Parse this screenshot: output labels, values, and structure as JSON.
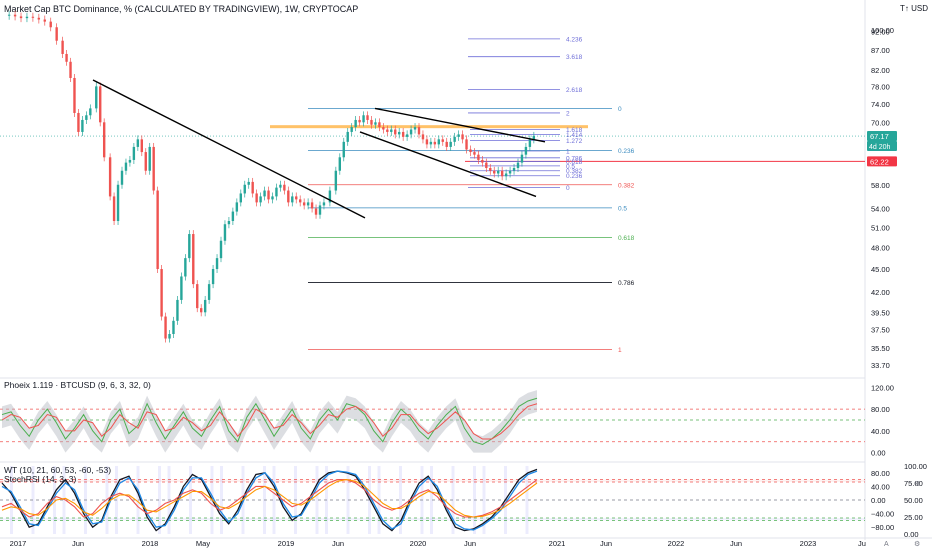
{
  "header": {
    "title": "Market Cap BTC Dominance, % (CALCULATED BY TRADINGVIEW), 1W, CRYPTOCAP",
    "currency": "T↑ USD"
  },
  "indicators": {
    "phoenix_title": "Phoeix 1.119 · BTCUSD (9, 6, 3, 32, 0)",
    "wt_title": "WT (10, 21, 60, 53, -60, -53)",
    "stoch_title": "StochRSI (14, 3, 3)"
  },
  "price_badges": {
    "current": "67.17",
    "countdown": "4d 20h",
    "level": "62.22"
  },
  "colors": {
    "up": "#26a69a",
    "down": "#ef5350",
    "fib_top": "#6f6fd8",
    "fib_236": "#3a8bbf",
    "fib_382": "#ef5350",
    "fib_618": "#4caf50",
    "fib_786": "#131722",
    "orange_zone": "#ffb74d",
    "badge_green": "#26a69a",
    "badge_red": "#f23645"
  },
  "chart_data": [
    {
      "type": "candlestick",
      "title": "Market Cap BTC Dominance, % (CALCULATED BY TRADINGVIEW), 1W, CRYPTOCAP",
      "ylim": [
        33.0,
        97.0
      ],
      "yscale": "log",
      "y_ticks": [
        92.0,
        87.0,
        82.0,
        78.0,
        74.0,
        70.0,
        66.0,
        62.0,
        58.0,
        54.0,
        51.0,
        48.0,
        45.0,
        42.0,
        39.5,
        37.5,
        35.5,
        33.7,
        100.0
      ],
      "y_tick_labels": [
        "92.00",
        "87.00",
        "82.00",
        "78.00",
        "74.00",
        "70.00",
        "66.00",
        "62.00",
        "58.00",
        "54.00",
        "51.00",
        "48.00",
        "45.00",
        "42.00",
        "39.50",
        "37.50",
        "35.50",
        "33.70",
        "100.00"
      ],
      "x_tick_labels": [
        "2017",
        "Jun",
        "2018",
        "May",
        "2019",
        "Jun",
        "2020",
        "Jun",
        "2021",
        "Jun",
        "2022",
        "Jun",
        "2023",
        "Ju"
      ],
      "close_series": [
        [
          0,
          96.5
        ],
        [
          6,
          96.8
        ],
        [
          12,
          96.3
        ],
        [
          18,
          95.8
        ],
        [
          24,
          96.2
        ],
        [
          30,
          95.9
        ],
        [
          36,
          95.4
        ],
        [
          42,
          94.8
        ],
        [
          48,
          93.2
        ],
        [
          54,
          89.5
        ],
        [
          60,
          86.0
        ],
        [
          64,
          84.0
        ],
        [
          68,
          80.0
        ],
        [
          72,
          72.0
        ],
        [
          76,
          68.0
        ],
        [
          80,
          70.5
        ],
        [
          84,
          71.5
        ],
        [
          88,
          73.0
        ],
        [
          94,
          78.0
        ],
        [
          98,
          70.0
        ],
        [
          102,
          63.0
        ],
        [
          108,
          56.0
        ],
        [
          112,
          52.0
        ],
        [
          116,
          58.0
        ],
        [
          120,
          60.5
        ],
        [
          124,
          62.0
        ],
        [
          128,
          62.5
        ],
        [
          132,
          65.0
        ],
        [
          136,
          66.5
        ],
        [
          140,
          64.0
        ],
        [
          144,
          60.5
        ],
        [
          148,
          65.0
        ],
        [
          152,
          57.0
        ],
        [
          156,
          45.0
        ],
        [
          160,
          39.0
        ],
        [
          164,
          36.5
        ],
        [
          168,
          37.0
        ],
        [
          172,
          38.5
        ],
        [
          176,
          41.0
        ],
        [
          180,
          44.0
        ],
        [
          184,
          46.5
        ],
        [
          188,
          50.0
        ],
        [
          192,
          43.0
        ],
        [
          196,
          40.0
        ],
        [
          200,
          39.5
        ],
        [
          204,
          41.0
        ],
        [
          208,
          43.0
        ],
        [
          212,
          45.0
        ],
        [
          216,
          46.5
        ],
        [
          220,
          49.0
        ],
        [
          224,
          51.5
        ],
        [
          228,
          52.0
        ],
        [
          232,
          53.5
        ],
        [
          236,
          55.0
        ],
        [
          240,
          56.5
        ],
        [
          244,
          58.0
        ],
        [
          248,
          58.5
        ],
        [
          252,
          56.5
        ],
        [
          256,
          55.0
        ],
        [
          260,
          56.0
        ],
        [
          264,
          57.0
        ],
        [
          268,
          55.5
        ],
        [
          272,
          56.0
        ],
        [
          276,
          57.5
        ],
        [
          280,
          58.0
        ],
        [
          284,
          57.0
        ],
        [
          288,
          55.0
        ],
        [
          292,
          56.0
        ],
        [
          296,
          55.5
        ],
        [
          300,
          55.0
        ],
        [
          304,
          54.5
        ],
        [
          308,
          55.0
        ],
        [
          312,
          54.0
        ],
        [
          316,
          53.0
        ],
        [
          320,
          54.5
        ],
        [
          324,
          55.0
        ],
        [
          330,
          57.0
        ],
        [
          336,
          60.5
        ],
        [
          340,
          63.0
        ],
        [
          344,
          66.0
        ],
        [
          348,
          68.0
        ],
        [
          352,
          69.0
        ],
        [
          356,
          70.5
        ],
        [
          360,
          70.0
        ],
        [
          364,
          71.5
        ],
        [
          368,
          70.5
        ],
        [
          372,
          69.5
        ],
        [
          376,
          70.0
        ],
        [
          380,
          69.0
        ],
        [
          384,
          68.5
        ],
        [
          388,
          68.0
        ],
        [
          392,
          68.5
        ],
        [
          396,
          67.5
        ],
        [
          400,
          68.0
        ],
        [
          404,
          67.0
        ],
        [
          408,
          67.5
        ],
        [
          412,
          68.5
        ],
        [
          416,
          69.0
        ],
        [
          420,
          67.5
        ],
        [
          424,
          66.5
        ],
        [
          428,
          65.5
        ],
        [
          432,
          66.0
        ],
        [
          436,
          65.5
        ],
        [
          440,
          66.5
        ],
        [
          444,
          66.0
        ],
        [
          448,
          65.0
        ],
        [
          452,
          66.0
        ],
        [
          456,
          67.0
        ],
        [
          460,
          67.5
        ],
        [
          464,
          66.5
        ],
        [
          468,
          64.5
        ],
        [
          472,
          64.0
        ],
        [
          476,
          63.5
        ],
        [
          480,
          62.5
        ],
        [
          484,
          62.0
        ],
        [
          488,
          61.0
        ],
        [
          492,
          60.5
        ],
        [
          496,
          60.0
        ],
        [
          500,
          60.5
        ],
        [
          504,
          59.5
        ],
        [
          508,
          60.0
        ],
        [
          512,
          60.5
        ],
        [
          516,
          61.0
        ],
        [
          520,
          62.0
        ],
        [
          524,
          63.5
        ],
        [
          528,
          65.0
        ],
        [
          532,
          66.5
        ],
        [
          536,
          67.2
        ]
      ],
      "annotations": [
        {
          "kind": "trendline",
          "label": "descending trendline 2017-2019",
          "points": [
            [
              2017.42,
              79.5
            ],
            [
              2019.58,
              52.5
            ]
          ]
        },
        {
          "kind": "trendline",
          "label": "channel top",
          "points": [
            [
              2019.62,
              73.0
            ],
            [
              2020.78,
              66.0
            ]
          ]
        },
        {
          "kind": "trendline",
          "label": "channel bottom",
          "points": [
            [
              2019.55,
              68.0
            ],
            [
              2020.72,
              56.0
            ]
          ]
        },
        {
          "kind": "zone",
          "label": "orange resistance",
          "y": [
            68.8,
            69.4
          ]
        },
        {
          "kind": "hline",
          "label": "62.22 level",
          "y": 62.22
        }
      ],
      "fib_levels": [
        {
          "label": "4.236",
          "y": 90.0,
          "color": "#6f6fd8"
        },
        {
          "label": "3.618",
          "y": 85.3,
          "color": "#6f6fd8"
        },
        {
          "label": "2.618",
          "y": 77.3,
          "color": "#6f6fd8"
        },
        {
          "label": "2",
          "y": 72.0,
          "color": "#6f6fd8"
        },
        {
          "label": "0",
          "y": 73.0,
          "color": "#3a8bbf"
        },
        {
          "label": "1.618",
          "y": 68.5,
          "color": "#6f6fd8"
        },
        {
          "label": "1.414",
          "y": 67.5,
          "color": "#6f6fd8"
        },
        {
          "label": "1.272",
          "y": 66.3,
          "color": "#6f6fd8"
        },
        {
          "label": "0.236",
          "y": 64.3,
          "color": "#3a8bbf"
        },
        {
          "label": "1",
          "y": 64.2,
          "color": "#6f6fd8"
        },
        {
          "label": "0.786",
          "y": 62.9,
          "color": "#6f6fd8"
        },
        {
          "label": "0.618",
          "y": 62.2,
          "color": "#6f6fd8"
        },
        {
          "label": "0.5",
          "y": 61.4,
          "color": "#6f6fd8"
        },
        {
          "label": "0.382",
          "y": 60.5,
          "color": "#6f6fd8"
        },
        {
          "label": "0.236",
          "y": 59.6,
          "color": "#6f6fd8"
        },
        {
          "label": "0.382",
          "y": 58.0,
          "color": "#ef5350"
        },
        {
          "label": "0",
          "y": 57.5,
          "color": "#6f6fd8"
        },
        {
          "label": "0.5",
          "y": 54.1,
          "color": "#3a8bbf"
        },
        {
          "label": "0.618",
          "y": 49.5,
          "color": "#4caf50"
        },
        {
          "label": "0.786",
          "y": 43.2,
          "color": "#131722"
        },
        {
          "label": "1",
          "y": 35.3,
          "color": "#ef5350"
        }
      ]
    },
    {
      "type": "line",
      "title": "Phoeix 1.119 · BTCUSD (9, 6, 3, 32, 0)",
      "ylim": [
        -10,
        130
      ],
      "y_ticks": [
        120.0,
        80.0,
        40.0,
        0.0
      ],
      "y_tick_labels": [
        "120.00",
        "80.00",
        "40.00",
        "0.00"
      ],
      "hlines": [
        80,
        60,
        20
      ],
      "series": [
        {
          "color": "#4caf50",
          "values": [
            70,
            75,
            50,
            30,
            60,
            80,
            55,
            25,
            45,
            70,
            40,
            20,
            60,
            80,
            35,
            50,
            90,
            55,
            25,
            50,
            75,
            45,
            30,
            60,
            85,
            40,
            20,
            65,
            90,
            60,
            30,
            55,
            80,
            45,
            25,
            60,
            80,
            60,
            90,
            85,
            70,
            40,
            20,
            55,
            80,
            65,
            40,
            25,
            50,
            70,
            85,
            45,
            20,
            15,
            25,
            40,
            60,
            85,
            95,
            100
          ]
        },
        {
          "color": "#ef5350",
          "values": [
            60,
            70,
            65,
            45,
            50,
            70,
            65,
            40,
            40,
            60,
            55,
            30,
            45,
            70,
            55,
            45,
            75,
            70,
            40,
            45,
            65,
            55,
            40,
            50,
            75,
            55,
            30,
            50,
            80,
            70,
            45,
            50,
            70,
            55,
            35,
            50,
            70,
            65,
            80,
            85,
            75,
            55,
            30,
            45,
            70,
            70,
            50,
            35,
            45,
            60,
            75,
            60,
            35,
            25,
            25,
            35,
            50,
            70,
            85,
            90
          ]
        }
      ]
    },
    {
      "type": "line",
      "title": "WT (10, 21, 60, 53, -60, -53) / StochRSI (14, 3, 3)",
      "ylim": [
        -100,
        100
      ],
      "y_ticks": [
        80.0,
        40.0,
        0.0,
        -40.0,
        -80.0
      ],
      "y_tick_labels": [
        "80.00",
        "40.00",
        "0.00",
        "−40.00",
        "−80.00"
      ],
      "right_ticks": [
        100.0,
        75.0,
        50.0,
        25.0,
        0.0
      ],
      "right_tick_labels": [
        "100.00",
        "75.00",
        "50.00",
        "25.00",
        "0.00"
      ],
      "hlines": [
        60,
        53,
        0,
        -53,
        -60
      ],
      "series": [
        {
          "color": "#131722",
          "values": [
            50,
            20,
            -30,
            -80,
            -70,
            -20,
            30,
            60,
            20,
            -40,
            -80,
            -60,
            10,
            60,
            70,
            20,
            -50,
            -90,
            -70,
            -20,
            40,
            75,
            60,
            10,
            -40,
            -70,
            -30,
            30,
            75,
            80,
            40,
            -20,
            -60,
            -40,
            10,
            60,
            80,
            85,
            80,
            70,
            30,
            -20,
            -70,
            -90,
            -60,
            0,
            50,
            70,
            30,
            -30,
            -80,
            -90,
            -85,
            -70,
            -50,
            -20,
            20,
            60,
            80,
            90
          ]
        },
        {
          "color": "#1e88e5",
          "values": [
            40,
            25,
            -20,
            -70,
            -75,
            -30,
            20,
            50,
            30,
            -30,
            -70,
            -65,
            0,
            50,
            65,
            30,
            -40,
            -80,
            -75,
            -30,
            30,
            65,
            65,
            20,
            -30,
            -65,
            -40,
            20,
            65,
            80,
            50,
            -10,
            -50,
            -45,
            0,
            50,
            75,
            85,
            82,
            75,
            40,
            -10,
            -60,
            -85,
            -70,
            -10,
            40,
            65,
            40,
            -20,
            -70,
            -85,
            -88,
            -75,
            -55,
            -30,
            10,
            50,
            75,
            85
          ]
        },
        {
          "color": "#ef5350",
          "values": [
            -20,
            -10,
            -30,
            -50,
            -40,
            -10,
            10,
            0,
            -20,
            -50,
            -40,
            -10,
            10,
            20,
            10,
            -20,
            -40,
            -30,
            -10,
            0,
            20,
            30,
            20,
            -10,
            -30,
            -20,
            0,
            20,
            40,
            40,
            20,
            0,
            -20,
            -10,
            10,
            30,
            50,
            60,
            60,
            50,
            30,
            0,
            -20,
            -30,
            -20,
            0,
            20,
            30,
            10,
            -20,
            -40,
            -50,
            -50,
            -45,
            -35,
            -20,
            0,
            20,
            40,
            60
          ]
        },
        {
          "color": "#ff9800",
          "values": [
            -30,
            -20,
            -25,
            -40,
            -45,
            -25,
            0,
            5,
            -10,
            -35,
            -45,
            -25,
            0,
            15,
            15,
            -5,
            -30,
            -35,
            -20,
            -5,
            10,
            25,
            25,
            5,
            -20,
            -25,
            -10,
            10,
            30,
            40,
            30,
            10,
            -10,
            -15,
            0,
            20,
            40,
            55,
            60,
            55,
            40,
            15,
            -10,
            -25,
            -25,
            -10,
            10,
            25,
            20,
            -5,
            -30,
            -45,
            -50,
            -48,
            -40,
            -28,
            -10,
            10,
            30,
            50
          ]
        }
      ]
    }
  ]
}
